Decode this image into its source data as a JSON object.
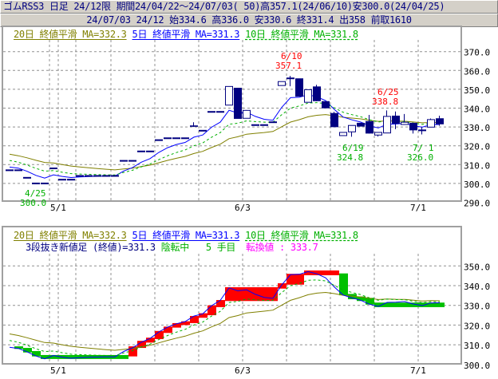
{
  "header": {
    "line1": "ゴムRSS3 日足 24/12限 期間24/04/22～24/07/03( 50)高357.1(24/06/10)安300.0(24/04/25)",
    "line2": "24/07/03 24/12 始334.6 高336.0 安330.6 終331.4 出358 前取1610"
  },
  "legend": {
    "ma20": "20日 終値平滑 MA=332.3",
    "ma5": "5日 終値平滑 MA=331.3",
    "ma10": "10日 終値平滑 MA=331.8",
    "linebreak": "3段抜き新値足 (終値)=331.3",
    "trend": "陰転中",
    "step": "5 手目",
    "reversal": "転換値 : 333.7"
  },
  "colors": {
    "candle": "#000080",
    "ma20": "#808000",
    "ma5": "#0000ff",
    "ma10": "#00b000",
    "brick_up": "#ff0000",
    "brick_down": "#00c000",
    "high_label": "#ff0000",
    "low_label": "#00b000",
    "reversal": "#ff00ff"
  },
  "annotations": [
    {
      "date": "4/25",
      "value": "300.0",
      "kind": "low"
    },
    {
      "date": "6/10",
      "value": "357.1",
      "kind": "high"
    },
    {
      "date": "6/19",
      "value": "324.8",
      "kind": "low"
    },
    {
      "date": "6/25",
      "value": "338.8",
      "kind": "high"
    },
    {
      "date": "7/ 1",
      "value": "326.0",
      "kind": "low"
    }
  ],
  "chart_data": [
    {
      "type": "candlestick",
      "ylim": [
        290,
        372
      ],
      "y_ticks": [
        "370.0",
        "360.0",
        "350.0",
        "340.0",
        "330.0",
        "320.0",
        "310.0",
        "300.0",
        "290.0"
      ],
      "x_tick_labels": [
        "5/1",
        "6/3",
        "7/1"
      ],
      "grid": true,
      "dates": [
        "4/22",
        "4/23",
        "4/24",
        "4/25",
        "4/26",
        "4/30",
        "5/1",
        "5/2",
        "5/7",
        "5/8",
        "5/9",
        "5/10",
        "5/13",
        "5/14",
        "5/15",
        "5/16",
        "5/17",
        "5/20",
        "5/21",
        "5/22",
        "5/23",
        "5/24",
        "5/27",
        "5/28",
        "5/29",
        "5/30",
        "5/31",
        "6/3",
        "6/4",
        "6/5",
        "6/6",
        "6/7",
        "6/10",
        "6/11",
        "6/12",
        "6/13",
        "6/14",
        "6/17",
        "6/18",
        "6/19",
        "6/20",
        "6/21",
        "6/24",
        "6/25",
        "6/26",
        "6/27",
        "6/28",
        "7/1",
        "7/2",
        "7/3"
      ],
      "ohlc": [
        [
          307,
          307,
          307,
          307
        ],
        [
          307,
          307,
          307,
          307
        ],
        [
          303,
          303,
          303,
          303
        ],
        [
          300,
          300,
          300,
          300
        ],
        [
          300,
          300,
          300,
          300
        ],
        [
          308,
          308,
          308,
          308
        ],
        [
          302,
          302,
          302,
          302
        ],
        [
          302,
          302,
          302,
          302
        ],
        [
          304,
          304,
          304,
          304
        ],
        [
          304,
          304,
          304,
          304
        ],
        [
          304,
          304,
          304,
          304
        ],
        [
          304,
          304,
          304,
          304
        ],
        [
          304,
          304,
          304,
          304
        ],
        [
          312,
          312,
          312,
          312
        ],
        [
          312,
          312,
          312,
          312
        ],
        [
          317,
          317,
          317,
          317
        ],
        [
          317,
          317,
          317,
          317
        ],
        [
          323,
          323,
          323,
          323
        ],
        [
          324,
          324,
          324,
          324
        ],
        [
          324,
          324,
          324,
          324
        ],
        [
          324,
          324,
          324,
          324
        ],
        [
          330.8,
          332.5,
          330,
          330.1
        ],
        [
          328,
          328,
          328,
          328
        ],
        [
          338,
          338,
          338,
          338
        ],
        [
          338,
          338,
          338,
          338
        ],
        [
          341.6,
          351.5,
          341.6,
          351.5
        ],
        [
          350.8,
          350.8,
          334.3,
          334.3
        ],
        [
          334.6,
          338.8,
          334.6,
          338.8
        ],
        [
          331,
          331,
          331,
          331
        ],
        [
          331,
          331,
          331,
          331
        ],
        [
          332.5,
          332.5,
          332.5,
          332.5
        ],
        [
          352,
          354.1,
          352,
          354.1
        ],
        [
          355.8,
          357.1,
          351.6,
          355.8
        ],
        [
          355.8,
          355.8,
          346.1,
          346.1
        ],
        [
          343.1,
          349.8,
          343.1,
          349.8
        ],
        [
          351.5,
          352.4,
          343.7,
          343.7
        ],
        [
          343.7,
          343.7,
          339.9,
          339.9
        ],
        [
          337.4,
          338,
          329.9,
          329.9
        ],
        [
          325.4,
          327.1,
          325.4,
          327.1
        ],
        [
          327.4,
          330.8,
          324.8,
          330.8
        ],
        [
          332.2,
          332.2,
          330.2,
          330.2
        ],
        [
          333.1,
          336.4,
          326.5,
          326.5
        ],
        [
          325.7,
          327.1,
          324.9,
          327.1
        ],
        [
          326.8,
          338.8,
          326.8,
          335.6
        ],
        [
          336,
          338.2,
          328.8,
          331.7
        ],
        [
          331.3,
          336.9,
          331.3,
          332.5
        ],
        [
          332.2,
          332.2,
          326.5,
          328.2
        ],
        [
          328.2,
          330,
          326,
          328.2
        ],
        [
          329.9,
          334.5,
          329.9,
          333.9
        ],
        [
          334.6,
          336,
          330.6,
          331.4
        ]
      ],
      "moving_averages": [
        {
          "name": "20日 終値平滑",
          "period": 20,
          "last": 332.3
        },
        {
          "name": "5日 終値平滑",
          "period": 5,
          "last": 331.3
        },
        {
          "name": "10日 終値平滑",
          "period": 10,
          "last": 331.8
        }
      ]
    },
    {
      "type": "line_break",
      "ylim": [
        300,
        359
      ],
      "y_ticks": [
        "350.0",
        "340.0",
        "330.0",
        "320.0",
        "310.0",
        "300.0"
      ],
      "x_tick_labels": [
        "5/1",
        "6/3",
        "7/1"
      ],
      "grid": true,
      "bricks": [
        {
          "from": "4/23",
          "to": "4/23",
          "low": 307.9,
          "high": 309.2,
          "dir": "down"
        },
        {
          "from": "4/24",
          "to": "4/24",
          "low": 306.1,
          "high": 308.4,
          "dir": "down"
        },
        {
          "from": "4/25",
          "to": "4/25",
          "low": 304.1,
          "high": 306.8,
          "dir": "down"
        },
        {
          "from": "4/26",
          "to": "5/14",
          "low": 302.8,
          "high": 304.8,
          "dir": "down"
        },
        {
          "from": "5/15",
          "to": "5/15",
          "low": 304.1,
          "high": 309.2,
          "dir": "up"
        },
        {
          "from": "5/16",
          "to": "5/16",
          "low": 308.4,
          "high": 312.0,
          "dir": "up"
        },
        {
          "from": "5/17",
          "to": "5/17",
          "low": 311.1,
          "high": 313.6,
          "dir": "up"
        },
        {
          "from": "5/20",
          "to": "5/20",
          "low": 312.9,
          "high": 317.0,
          "dir": "up"
        },
        {
          "from": "5/21",
          "to": "5/21",
          "low": 316.0,
          "high": 319.2,
          "dir": "up"
        },
        {
          "from": "5/22",
          "to": "5/22",
          "low": 318.7,
          "high": 321.0,
          "dir": "up"
        },
        {
          "from": "5/23",
          "to": "5/23",
          "low": 320.0,
          "high": 321.9,
          "dir": "up"
        },
        {
          "from": "5/24",
          "to": "5/24",
          "low": 321.0,
          "high": 324.6,
          "dir": "up"
        },
        {
          "from": "5/27",
          "to": "5/27",
          "low": 323.7,
          "high": 326.0,
          "dir": "up"
        },
        {
          "from": "5/28",
          "to": "5/28",
          "low": 325.0,
          "high": 330.0,
          "dir": "up"
        },
        {
          "from": "5/29",
          "to": "5/29",
          "low": 329.1,
          "high": 332.7,
          "dir": "up"
        },
        {
          "from": "5/30",
          "to": "6/6",
          "low": 332.2,
          "high": 339.2,
          "dir": "up"
        },
        {
          "from": "6/7",
          "to": "6/7",
          "low": 338.5,
          "high": 341.2,
          "dir": "up"
        },
        {
          "from": "6/10",
          "to": "6/11",
          "low": 340.5,
          "high": 346.0,
          "dir": "up"
        },
        {
          "from": "6/12",
          "to": "6/17",
          "low": 345.3,
          "high": 347.7,
          "dir": "up"
        },
        {
          "from": "6/18",
          "to": "6/18",
          "low": 335.1,
          "high": 346.2,
          "dir": "down"
        },
        {
          "from": "6/19",
          "to": "6/19",
          "low": 333.1,
          "high": 335.8,
          "dir": "down"
        },
        {
          "from": "6/20",
          "to": "6/20",
          "low": 332.2,
          "high": 334.5,
          "dir": "down"
        },
        {
          "from": "6/21",
          "to": "6/21",
          "low": 330.4,
          "high": 333.8,
          "dir": "down"
        },
        {
          "from": "6/24",
          "to": "7/3",
          "low": 329.1,
          "high": 331.4,
          "dir": "down"
        }
      ]
    }
  ]
}
